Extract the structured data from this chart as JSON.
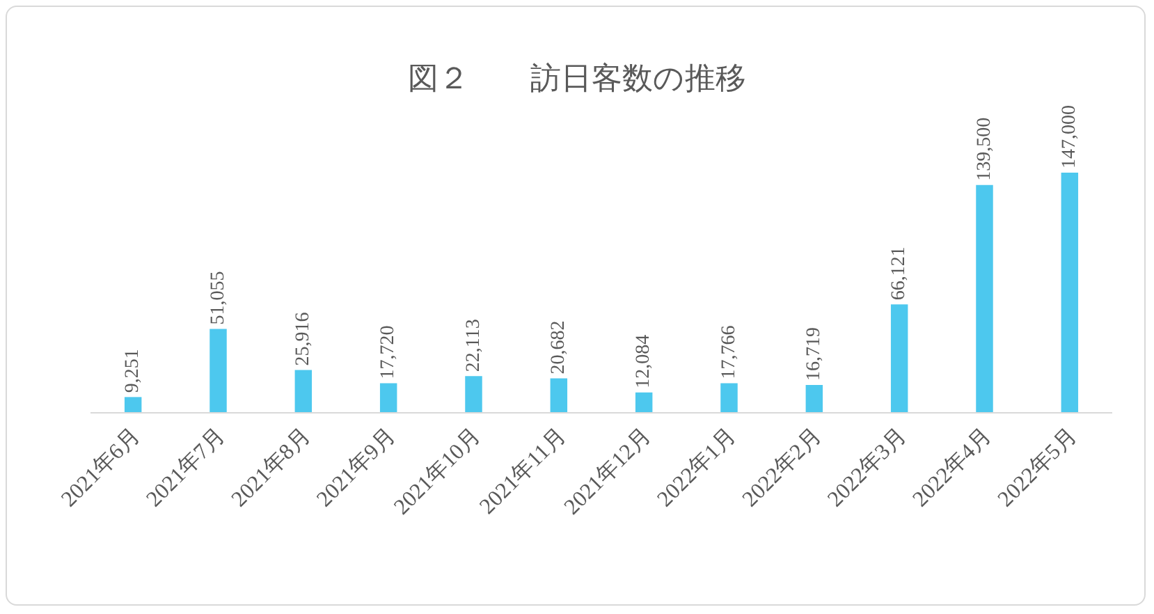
{
  "chart_data": {
    "type": "bar",
    "title": "図２　　訪日客数の推移",
    "categories": [
      "2021年6月",
      "2021年7月",
      "2021年8月",
      "2021年9月",
      "2021年10月",
      "2021年11月",
      "2021年12月",
      "2022年1月",
      "2022年2月",
      "2022年3月",
      "2022年4月",
      "2022年5月"
    ],
    "values": [
      9251,
      51055,
      25916,
      17720,
      22113,
      20682,
      12084,
      17766,
      16719,
      66121,
      139500,
      147000
    ],
    "value_labels": [
      "9,251",
      "51,055",
      "25,916",
      "17,720",
      "22,113",
      "20,682",
      "12,084",
      "17,766",
      "16,719",
      "66,121",
      "139,500",
      "147,000"
    ],
    "color": "#4dc8ee"
  }
}
